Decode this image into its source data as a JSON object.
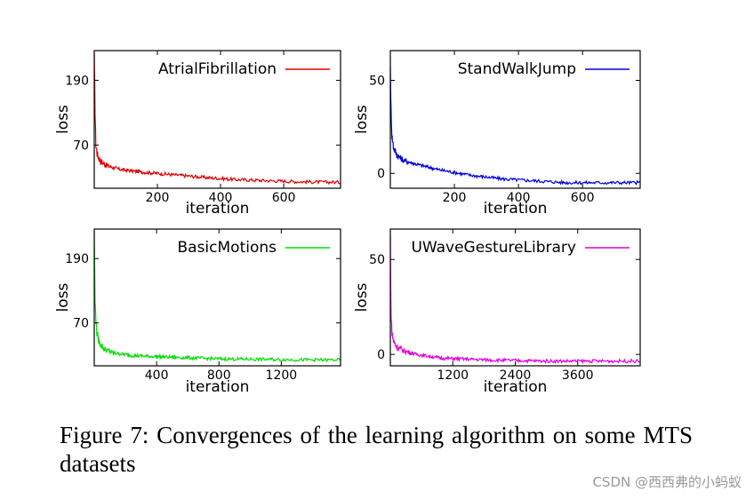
{
  "figure": {
    "caption": "Figure 7: Convergences of the learning algorithm on some MTS datasets",
    "watermark": "CSDN @西西弗的小蚂蚁"
  },
  "chart_data": [
    {
      "type": "line",
      "legend_label": "AtrialFibrillation",
      "legend_position": "top-right",
      "color": "#e00000",
      "xlabel": "iteration",
      "ylabel": "loss",
      "xlim": [
        0,
        780
      ],
      "ylim": [
        -10,
        245
      ],
      "xticks": [
        200,
        400,
        600
      ],
      "xtick_labels": [
        "200",
        "400",
        "600"
      ],
      "yticks": [
        70,
        190
      ],
      "ytick_labels": [
        "70",
        "190"
      ],
      "series": [
        {
          "x": [
            0,
            2,
            5,
            10,
            20,
            40,
            80,
            150,
            250,
            350,
            450,
            550,
            650,
            780
          ],
          "y": [
            240,
            150,
            70,
            52,
            40,
            32,
            25,
            20,
            15,
            10,
            6,
            4,
            2,
            1
          ]
        }
      ]
    },
    {
      "type": "line",
      "legend_label": "StandWalkJump",
      "legend_position": "top-right",
      "color": "#0000e0",
      "xlabel": "iteration",
      "ylabel": "loss",
      "xlim": [
        0,
        780
      ],
      "ylim": [
        -8,
        66
      ],
      "xticks": [
        200,
        400,
        600
      ],
      "xtick_labels": [
        "200",
        "400",
        "600"
      ],
      "yticks": [
        0,
        50
      ],
      "ytick_labels": [
        "0",
        "50"
      ],
      "series": [
        {
          "x": [
            0,
            2,
            5,
            10,
            20,
            40,
            80,
            150,
            250,
            350,
            450,
            550,
            650,
            780
          ],
          "y": [
            57,
            35,
            20,
            14,
            10,
            7,
            5,
            2,
            -1,
            -3,
            -4,
            -5,
            -5,
            -5
          ]
        }
      ]
    },
    {
      "type": "line",
      "legend_label": "BasicMotions",
      "legend_position": "top-right",
      "color": "#00dd00",
      "xlabel": "iteration",
      "ylabel": "loss",
      "xlim": [
        0,
        1580
      ],
      "ylim": [
        -10,
        245
      ],
      "xticks": [
        400,
        800,
        1200
      ],
      "xtick_labels": [
        "400",
        "800",
        "1200"
      ],
      "yticks": [
        70,
        190
      ],
      "ytick_labels": [
        "70",
        "190"
      ],
      "series": [
        {
          "x": [
            0,
            5,
            15,
            30,
            60,
            120,
            250,
            500,
            800,
            1100,
            1400,
            1580
          ],
          "y": [
            240,
            110,
            55,
            35,
            22,
            14,
            9,
            6,
            3,
            2,
            1,
            1
          ]
        }
      ]
    },
    {
      "type": "line",
      "legend_label": "UWaveGestureLibrary",
      "legend_position": "top-right",
      "color": "#e000e0",
      "xlabel": "iteration",
      "ylabel": "loss",
      "xlim": [
        0,
        4800
      ],
      "ylim": [
        -6,
        66
      ],
      "xticks": [
        1200,
        2400,
        3600
      ],
      "xtick_labels": [
        "1200",
        "2400",
        "3600"
      ],
      "yticks": [
        0,
        50
      ],
      "ytick_labels": [
        "0",
        "50"
      ],
      "series": [
        {
          "x": [
            0,
            10,
            30,
            60,
            120,
            250,
            500,
            1000,
            2000,
            3000,
            4000,
            4800
          ],
          "y": [
            62,
            25,
            12,
            7,
            4,
            2,
            0,
            -2,
            -3,
            -3.5,
            -3.5,
            -3.5
          ]
        }
      ]
    }
  ]
}
